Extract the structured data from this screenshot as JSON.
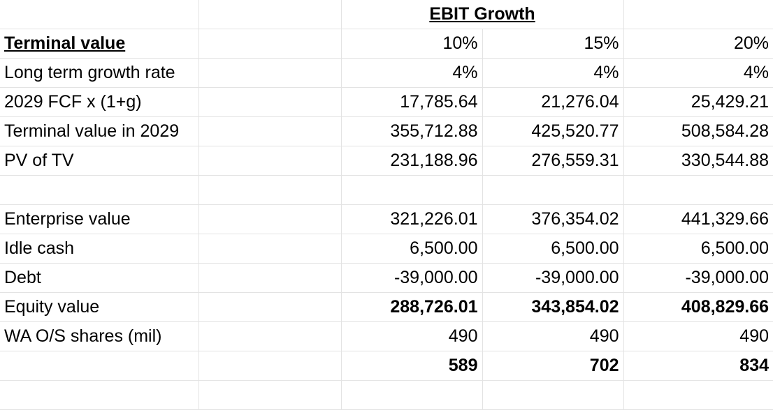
{
  "header": {
    "group_title": "EBIT Growth",
    "section_title": "Terminal value",
    "columns": [
      "10%",
      "15%",
      "20%"
    ]
  },
  "rows": [
    {
      "label": "Long term growth rate",
      "values": [
        "4%",
        "4%",
        "4%"
      ],
      "bold": false
    },
    {
      "label": "2029 FCF x (1+g)",
      "values": [
        "17,785.64",
        "21,276.04",
        "25,429.21"
      ],
      "bold": false
    },
    {
      "label": "Terminal value in 2029",
      "values": [
        "355,712.88",
        "425,520.77",
        "508,584.28"
      ],
      "bold": false
    },
    {
      "label": "PV of TV",
      "values": [
        "231,188.96",
        "276,559.31",
        "330,544.88"
      ],
      "bold": false
    },
    {
      "label": "",
      "values": [
        "",
        "",
        ""
      ],
      "bold": false
    },
    {
      "label": "Enterprise value",
      "values": [
        "321,226.01",
        "376,354.02",
        "441,329.66"
      ],
      "bold": false
    },
    {
      "label": "Idle cash",
      "values": [
        "6,500.00",
        "6,500.00",
        "6,500.00"
      ],
      "bold": false
    },
    {
      "label": "Debt",
      "values": [
        "-39,000.00",
        "-39,000.00",
        "-39,000.00"
      ],
      "bold": false
    },
    {
      "label": "Equity value",
      "values": [
        "288,726.01",
        "343,854.02",
        "408,829.66"
      ],
      "bold": true
    },
    {
      "label": "WA O/S shares (mil)",
      "values": [
        "490",
        "490",
        "490"
      ],
      "bold": false
    },
    {
      "label": "",
      "values": [
        "589",
        "702",
        "834"
      ],
      "bold": true
    },
    {
      "label": "",
      "values": [
        "",
        "",
        ""
      ],
      "bold": false
    }
  ]
}
